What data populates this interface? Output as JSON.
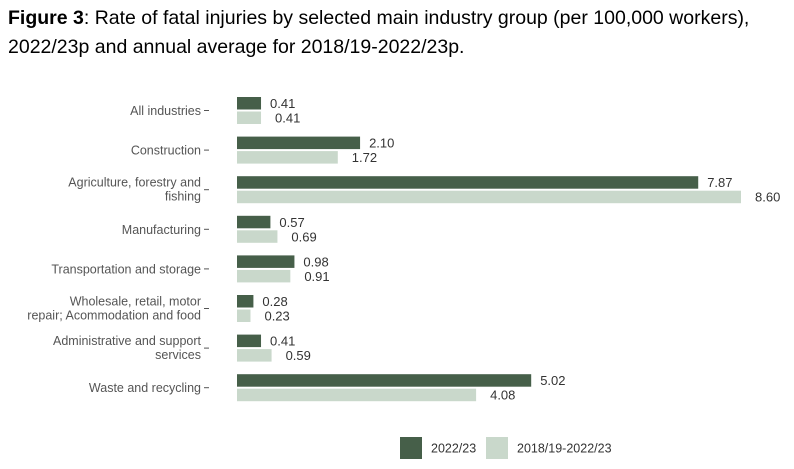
{
  "figure": {
    "label": "Figure 3",
    "title": ": Rate of fatal injuries by selected main industry group (per 100,000 workers), 2022/23p and annual average for 2018/19-2022/23p."
  },
  "colors": {
    "series1": "#465f49",
    "series2": "#c9d8cb",
    "axis": "#555555",
    "text": "#333333"
  },
  "chart_data": {
    "type": "bar",
    "orientation": "horizontal",
    "categories": [
      [
        "All industries"
      ],
      [
        "Construction"
      ],
      [
        "Agriculture, forestry and",
        "fishing"
      ],
      [
        "Manufacturing"
      ],
      [
        "Transportation and storage"
      ],
      [
        "Wholesale, retail, motor",
        "repair; Acommodation and food"
      ],
      [
        "Administrative and support",
        "services"
      ],
      [
        "Waste and recycling"
      ]
    ],
    "series": [
      {
        "name": "2022/23",
        "values": [
          0.41,
          2.1,
          7.87,
          0.57,
          0.98,
          0.28,
          0.41,
          5.02
        ],
        "labels": [
          "0.41",
          "2.10",
          "7.87",
          "0.57",
          "0.98",
          "0.28",
          "0.41",
          "5.02"
        ]
      },
      {
        "name": "2018/19-2022/23",
        "values": [
          0.41,
          1.72,
          8.6,
          0.69,
          0.91,
          0.23,
          0.59,
          4.08
        ],
        "labels": [
          "0.41",
          "1.72",
          "8.60",
          "0.69",
          "0.91",
          "0.23",
          "0.59",
          "4.08"
        ]
      }
    ],
    "xlim": [
      0,
      8.6
    ],
    "grid": false,
    "legend": "bottom"
  }
}
